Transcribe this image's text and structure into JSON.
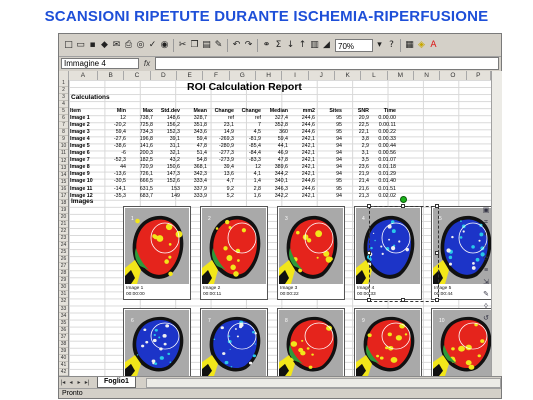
{
  "slide_title": "SCANSIONI RIPETUTE DURANTE ISCHEMIA-RIPERFUSIONE",
  "toolbar": {
    "zoom": "70%"
  },
  "formula_bar": {
    "name_box": "Immagine 4",
    "fx": "fx"
  },
  "columns": [
    "A",
    "B",
    "C",
    "D",
    "E",
    "F",
    "G",
    "H",
    "I",
    "J",
    "K",
    "L",
    "M",
    "N",
    "O",
    "P"
  ],
  "report": {
    "title": "ROI Calculation Report",
    "calc_label": "Calculations",
    "images_label": "Images",
    "headers": [
      "Item",
      "Min",
      "Max",
      "Std.dev",
      "Mean",
      "Change",
      "Change",
      "Median",
      "mm2",
      "Sites",
      "SNR",
      "Time"
    ],
    "rows": [
      [
        "Image 1",
        "12",
        "738,7",
        "148,6",
        "328,7",
        "ref",
        "ref",
        "327,4",
        "244,6",
        "95",
        "20,9",
        "0.00.00"
      ],
      [
        "Image 2",
        "-20,2",
        "725,8",
        "156,2",
        "351,8",
        "23,1",
        "7",
        "352,8",
        "244,6",
        "95",
        "22,5",
        "0.00.11"
      ],
      [
        "Image 3",
        "59,4",
        "734,3",
        "152,3",
        "343,6",
        "14,9",
        "4,5",
        "360",
        "244,6",
        "95",
        "22,1",
        "0.00.22"
      ],
      [
        "Image 4",
        "-27,6",
        "196,8",
        "39,1",
        "59,4",
        "-269,3",
        "-81,9",
        "59,4",
        "242,1",
        "94",
        "3,8",
        "0.00.33"
      ],
      [
        "Image 5",
        "-38,6",
        "141,6",
        "31,1",
        "47,8",
        "-280,9",
        "-85,4",
        "44,1",
        "242,1",
        "94",
        "2,9",
        "0.00.44"
      ],
      [
        "Image 6",
        "-6",
        "200,3",
        "32,1",
        "51,4",
        "-277,3",
        "-84,4",
        "46,9",
        "242,1",
        "94",
        "3,1",
        "0.00.56"
      ],
      [
        "Image 7",
        "-52,3",
        "182,5",
        "43,2",
        "54,8",
        "-273,9",
        "-83,3",
        "47,8",
        "242,1",
        "94",
        "3,5",
        "0.01.07"
      ],
      [
        "Image 8",
        "44",
        "720,9",
        "150,6",
        "368,1",
        "39,4",
        "12",
        "389,6",
        "242,1",
        "94",
        "23,6",
        "0.01.18"
      ],
      [
        "Image 9",
        "-13,6",
        "726,1",
        "147,3",
        "342,3",
        "13,6",
        "4,1",
        "344,2",
        "242,1",
        "94",
        "21,9",
        "0.01.29"
      ],
      [
        "Image 10",
        "-30,5",
        "666,5",
        "152,6",
        "333,4",
        "4,7",
        "1,4",
        "340,1",
        "244,6",
        "95",
        "21,4",
        "0.01.40"
      ],
      [
        "Image 11",
        "-14,1",
        "631,5",
        "153",
        "337,9",
        "9,2",
        "2,8",
        "346,3",
        "244,6",
        "95",
        "21,6",
        "0.01.51"
      ],
      [
        "Image 12",
        "-35,3",
        "683,7",
        "149",
        "333,9",
        "5,2",
        "1,6",
        "342,2",
        "242,1",
        "94",
        "21,3",
        "0.02.02"
      ]
    ],
    "row_numbers": [
      "1",
      "2",
      "3",
      "4",
      "5",
      "6",
      "7",
      "8",
      "9",
      "10",
      "11",
      "12",
      "13",
      "14",
      "15",
      "16",
      "17",
      "18",
      "19",
      "20",
      "21",
      "22",
      "23",
      "24",
      "25",
      "26",
      "27",
      "28",
      "29",
      "30",
      "31",
      "32",
      "33",
      "34",
      "35",
      "36",
      "37",
      "38",
      "39",
      "40",
      "41",
      "42"
    ]
  },
  "thumbnails_row1": [
    {
      "label": "1",
      "caption": "Image 1",
      "time": "00:00:00",
      "state": "red"
    },
    {
      "label": "2",
      "caption": "Image 2",
      "time": "00:00:11",
      "state": "red"
    },
    {
      "label": "3",
      "caption": "Image 3",
      "time": "00:00:22",
      "state": "red"
    },
    {
      "label": "4",
      "caption": "Image 4",
      "time": "00:00:33",
      "state": "blue"
    },
    {
      "label": "5",
      "caption": "Image 5",
      "time": "00:00:44",
      "state": "blue"
    }
  ],
  "thumbnails_row2": [
    {
      "label": "6",
      "state": "blue"
    },
    {
      "label": "7",
      "state": "blue"
    },
    {
      "label": "8",
      "state": "red"
    },
    {
      "label": "9",
      "state": "red"
    },
    {
      "label": "10",
      "state": "red"
    }
  ],
  "sheet_tab": "Foglio1",
  "status": "Pronto",
  "colors": {
    "title": "#1e4fd8",
    "heat_red": "#e5241c",
    "heat_yellow": "#f2e61a",
    "heat_blue": "#1c34c8",
    "tissue_gray": "#a9a9a9"
  }
}
